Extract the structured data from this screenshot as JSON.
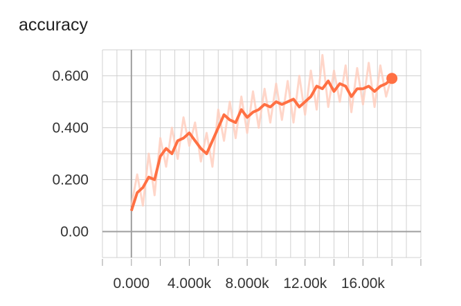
{
  "chart_data": {
    "type": "line",
    "title": "accuracy",
    "xlabel": "",
    "ylabel": "",
    "xlim": [
      -2000,
      20000
    ],
    "ylim": [
      -0.1,
      0.7
    ],
    "x_ticks": [
      0,
      4000,
      8000,
      12000,
      16000
    ],
    "x_tick_labels": [
      "0.000",
      "4.000k",
      "8.000k",
      "12.00k",
      "16.00k"
    ],
    "y_ticks": [
      0,
      0.2,
      0.4,
      0.6
    ],
    "y_tick_labels": [
      "0.00",
      "0.200",
      "0.400",
      "0.600"
    ],
    "grid": true,
    "colors": {
      "smoothed": "#ff7043",
      "raw": "#ffccbc",
      "grid": "#d0d0d0",
      "zero_axis": "#9e9e9e"
    },
    "series": [
      {
        "style": "smoothed",
        "x": [
          0,
          400,
          800,
          1200,
          1600,
          2000,
          2400,
          2800,
          3200,
          3600,
          4000,
          4400,
          4800,
          5200,
          5600,
          6000,
          6400,
          6800,
          7200,
          7600,
          8000,
          8400,
          8800,
          9200,
          9600,
          10000,
          10400,
          10800,
          11200,
          11600,
          12000,
          12400,
          12800,
          13200,
          13600,
          14000,
          14400,
          14800,
          15200,
          15600,
          16000,
          16400,
          16800,
          17200,
          17600,
          18000
        ],
        "values": [
          0.08,
          0.15,
          0.17,
          0.21,
          0.2,
          0.29,
          0.32,
          0.3,
          0.35,
          0.36,
          0.38,
          0.35,
          0.32,
          0.3,
          0.35,
          0.4,
          0.45,
          0.43,
          0.42,
          0.47,
          0.44,
          0.46,
          0.47,
          0.49,
          0.48,
          0.5,
          0.49,
          0.5,
          0.51,
          0.48,
          0.5,
          0.52,
          0.56,
          0.55,
          0.58,
          0.54,
          0.57,
          0.56,
          0.52,
          0.55,
          0.55,
          0.56,
          0.54,
          0.56,
          0.57,
          0.59
        ]
      },
      {
        "style": "raw",
        "x": [
          0,
          400,
          800,
          1200,
          1600,
          2000,
          2400,
          2800,
          3200,
          3600,
          4000,
          4400,
          4800,
          5200,
          5600,
          6000,
          6400,
          6800,
          7200,
          7600,
          8000,
          8400,
          8800,
          9200,
          9600,
          10000,
          10400,
          10800,
          11200,
          11600,
          12000,
          12400,
          12800,
          13200,
          13600,
          14000,
          14400,
          14800,
          15200,
          15600,
          16000,
          16400,
          16800,
          17200,
          17600,
          18000
        ],
        "values": [
          0.1,
          0.22,
          0.1,
          0.3,
          0.14,
          0.36,
          0.25,
          0.4,
          0.28,
          0.44,
          0.33,
          0.42,
          0.27,
          0.38,
          0.25,
          0.47,
          0.35,
          0.5,
          0.36,
          0.52,
          0.38,
          0.54,
          0.4,
          0.55,
          0.42,
          0.57,
          0.43,
          0.58,
          0.42,
          0.6,
          0.45,
          0.62,
          0.47,
          0.68,
          0.48,
          0.62,
          0.5,
          0.64,
          0.46,
          0.63,
          0.49,
          0.65,
          0.48,
          0.64,
          0.52,
          0.6
        ]
      }
    ]
  }
}
